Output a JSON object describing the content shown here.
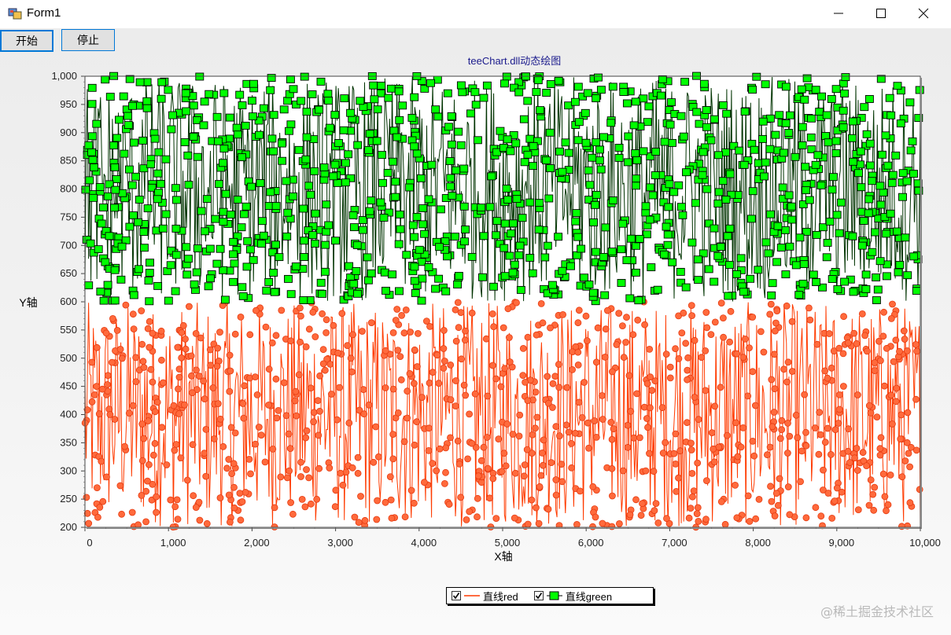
{
  "window": {
    "title": "Form1"
  },
  "toolbar": {
    "start_label": "开始",
    "stop_label": "停止"
  },
  "chart_data": {
    "type": "line",
    "title": "teeChart.dll动态绘图",
    "xlabel": "X轴",
    "ylabel": "Y轴",
    "xlim": [
      0,
      10000
    ],
    "ylim": [
      200,
      1000
    ],
    "x_ticks": [
      "0",
      "1,000",
      "2,000",
      "3,000",
      "4,000",
      "5,000",
      "6,000",
      "7,000",
      "8,000",
      "9,000",
      "10,000"
    ],
    "y_ticks": [
      "1,000",
      "950",
      "900",
      "850",
      "800",
      "750",
      "700",
      "650",
      "600",
      "550",
      "500",
      "450",
      "400",
      "350",
      "300",
      "250",
      "200"
    ],
    "series": [
      {
        "name": "直线red",
        "color": "#ff3b00",
        "marker": "circle",
        "y_range": [
          200,
          600
        ],
        "x_range": [
          0,
          10000
        ],
        "point_count": 10000
      },
      {
        "name": "直线green",
        "color": "#00ff00",
        "marker": "square",
        "y_range": [
          600,
          1000
        ],
        "x_range": [
          0,
          10000
        ],
        "point_count": 10000
      }
    ],
    "legend_position": "bottom-center",
    "grid": false
  },
  "legend": {
    "items": [
      {
        "label": "直线red",
        "checked": true
      },
      {
        "label": "直线green",
        "checked": true
      }
    ]
  },
  "watermark": "@稀土掘金技术社区"
}
